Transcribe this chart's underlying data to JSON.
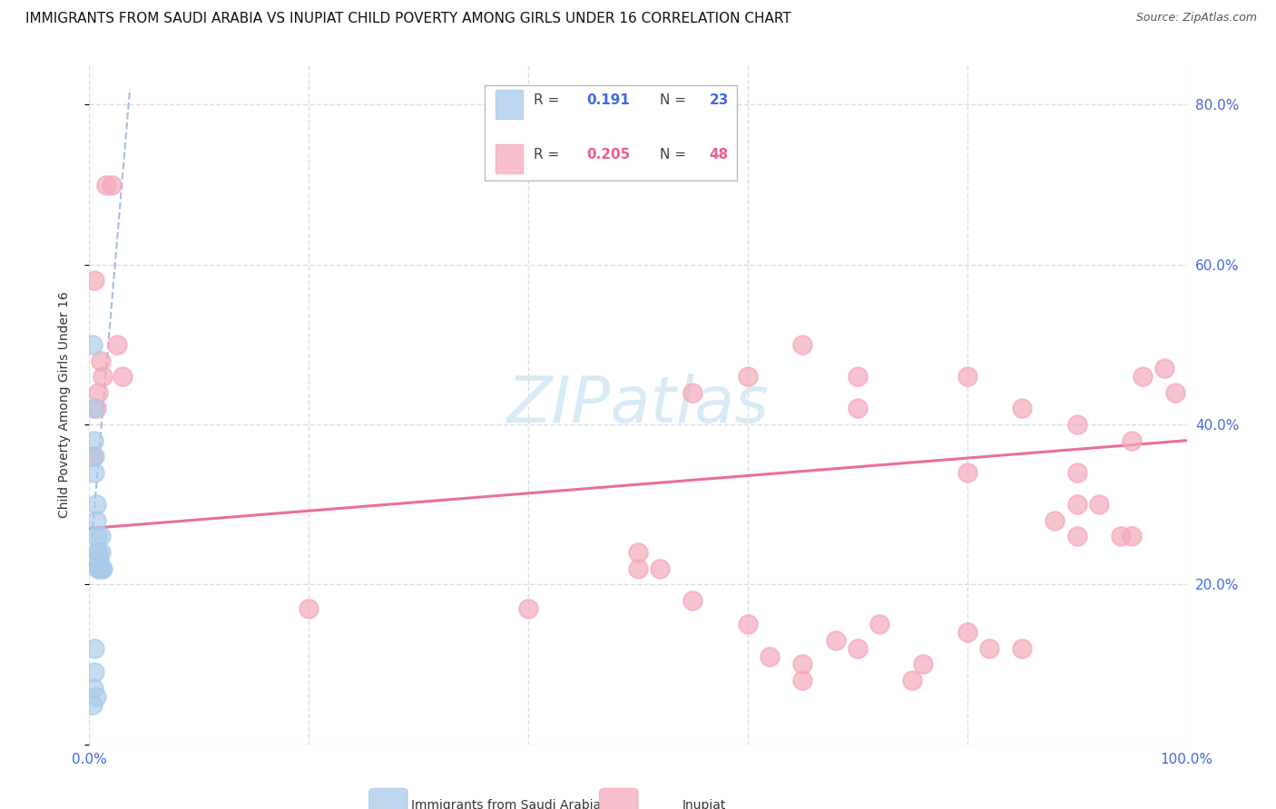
{
  "title": "IMMIGRANTS FROM SAUDI ARABIA VS INUPIAT CHILD POVERTY AMONG GIRLS UNDER 16 CORRELATION CHART",
  "source": "Source: ZipAtlas.com",
  "ylabel": "Child Poverty Among Girls Under 16",
  "watermark": "ZIPatlas",
  "legend_label1": "Immigrants from Saudi Arabia",
  "legend_label2": "Inupiat",
  "xlim": [
    0.0,
    1.0
  ],
  "ylim": [
    0.0,
    0.85
  ],
  "yticks": [
    0.0,
    0.2,
    0.4,
    0.6,
    0.8
  ],
  "ytick_labels": [
    "",
    "20.0%",
    "40.0%",
    "60.0%",
    "80.0%"
  ],
  "xticks": [
    0.0,
    0.2,
    0.4,
    0.6,
    0.8,
    1.0
  ],
  "xtick_labels": [
    "0.0%",
    "",
    "",
    "",
    "",
    "100.0%"
  ],
  "color_blue": "#A8CAEA",
  "color_pink": "#F4AABA",
  "color_blue_line": "#8AAACC",
  "color_pink_line": "#E8608A",
  "color_blue_text": "#4169E1",
  "color_pink_text": "#E8608A",
  "blue_scatter_x": [
    0.003,
    0.004,
    0.004,
    0.005,
    0.005,
    0.006,
    0.006,
    0.007,
    0.007,
    0.008,
    0.008,
    0.009,
    0.009,
    0.01,
    0.01,
    0.01,
    0.011,
    0.012,
    0.003,
    0.004,
    0.005,
    0.005,
    0.006
  ],
  "blue_scatter_y": [
    0.5,
    0.38,
    0.42,
    0.34,
    0.36,
    0.28,
    0.3,
    0.24,
    0.26,
    0.22,
    0.24,
    0.22,
    0.23,
    0.22,
    0.24,
    0.26,
    0.22,
    0.22,
    0.05,
    0.07,
    0.09,
    0.12,
    0.06
  ],
  "pink_scatter_x": [
    0.003,
    0.005,
    0.006,
    0.008,
    0.01,
    0.012,
    0.015,
    0.02,
    0.025,
    0.03,
    0.2,
    0.4,
    0.5,
    0.5,
    0.52,
    0.55,
    0.6,
    0.62,
    0.65,
    0.65,
    0.68,
    0.7,
    0.72,
    0.75,
    0.76,
    0.8,
    0.82,
    0.85,
    0.88,
    0.9,
    0.9,
    0.92,
    0.94,
    0.95,
    0.96,
    0.98,
    0.99,
    0.55,
    0.6,
    0.65,
    0.7,
    0.8,
    0.85,
    0.9,
    0.7,
    0.8,
    0.9,
    0.95
  ],
  "pink_scatter_y": [
    0.36,
    0.58,
    0.42,
    0.44,
    0.48,
    0.46,
    0.7,
    0.7,
    0.5,
    0.46,
    0.17,
    0.17,
    0.24,
    0.22,
    0.22,
    0.18,
    0.15,
    0.11,
    0.1,
    0.08,
    0.13,
    0.12,
    0.15,
    0.08,
    0.1,
    0.14,
    0.12,
    0.12,
    0.28,
    0.26,
    0.3,
    0.3,
    0.26,
    0.26,
    0.46,
    0.47,
    0.44,
    0.44,
    0.46,
    0.5,
    0.46,
    0.46,
    0.42,
    0.4,
    0.42,
    0.34,
    0.34,
    0.38
  ],
  "blue_line_x": [
    0.0,
    0.037
  ],
  "blue_line_y": [
    0.22,
    0.82
  ],
  "pink_line_x": [
    0.0,
    1.0
  ],
  "pink_line_y": [
    0.27,
    0.38
  ],
  "title_fontsize": 11,
  "source_fontsize": 9,
  "axis_label_fontsize": 10,
  "tick_fontsize": 11,
  "watermark_fontsize": 52,
  "watermark_color": "#D8EAF5",
  "background_color": "#FFFFFF",
  "grid_color": "#DDDDDD"
}
